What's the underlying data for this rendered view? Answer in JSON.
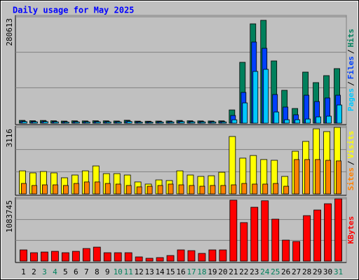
{
  "chart_data": [
    {
      "type": "bar",
      "title": "Daily usage for May 2025",
      "separator": "/",
      "ylim": [
        0,
        280613
      ],
      "yticks": [
        280613
      ],
      "series": [
        {
          "name": "Hits",
          "color": "#00805c",
          "values": [
            7400,
            6600,
            7200,
            6400,
            5600,
            6200,
            6000,
            6400,
            6200,
            5800,
            7800,
            5400,
            5200,
            5600,
            5800,
            7200,
            6400,
            6000,
            5800,
            6200,
            35000,
            160600,
            262100,
            271400,
            164300,
            86800,
            38800,
            134800,
            107100,
            125500,
            144000
          ]
        },
        {
          "name": "Files",
          "color": "#0040ff",
          "values": [
            5500,
            4800,
            5400,
            4600,
            4000,
            4400,
            4200,
            4600,
            4400,
            4200,
            5800,
            3800,
            3700,
            4000,
            4200,
            5400,
            4600,
            4400,
            4200,
            4400,
            20300,
            81200,
            214100,
            197500,
            75700,
            42500,
            22200,
            73800,
            57200,
            66500,
            73800
          ]
        },
        {
          "name": "Pages",
          "color": "#00c8ff",
          "values": [
            4200,
            3600,
            4100,
            3500,
            3000,
            3300,
            3200,
            3500,
            3300,
            3200,
            4400,
            2800,
            2700,
            3000,
            3200,
            4100,
            3500,
            3300,
            3200,
            3300,
            9000,
            53500,
            136600,
            142100,
            29500,
            9200,
            9200,
            11000,
            16600,
            18500,
            48000
          ]
        }
      ]
    },
    {
      "type": "bar",
      "separator": "/",
      "ylim": [
        0,
        3116
      ],
      "yticks": [
        3116
      ],
      "series": [
        {
          "name": "Visits",
          "color": "#ffff00",
          "values": [
            1080,
            985,
            1050,
            985,
            755,
            885,
            1080,
            1310,
            950,
            950,
            885,
            560,
            460,
            655,
            625,
            1080,
            885,
            820,
            850,
            1015,
            2690,
            1675,
            1800,
            1610,
            1575,
            820,
            2000,
            2460,
            3050,
            2920,
            3116
          ]
        },
        {
          "name": "Sites",
          "color": "#ff8000",
          "values": [
            490,
            395,
            425,
            425,
            395,
            490,
            560,
            560,
            490,
            460,
            395,
            330,
            360,
            395,
            460,
            425,
            395,
            360,
            395,
            395,
            425,
            490,
            460,
            460,
            490,
            360,
            1610,
            1610,
            1610,
            1575,
            1545
          ]
        }
      ]
    },
    {
      "type": "bar",
      "ylim": [
        0,
        1083745
      ],
      "yticks": [
        1083745
      ],
      "categories": [
        "1",
        "2",
        "3",
        "4",
        "5",
        "6",
        "7",
        "8",
        "9",
        "10",
        "11",
        "12",
        "13",
        "14",
        "15",
        "16",
        "17",
        "18",
        "19",
        "20",
        "21",
        "22",
        "23",
        "24",
        "25",
        "26",
        "27",
        "28",
        "29",
        "30",
        "31"
      ],
      "label_colors": [
        "#000000",
        "#000000",
        "#00805c",
        "#00805c",
        "#000000",
        "#000000",
        "#000000",
        "#000000",
        "#000000",
        "#00805c",
        "#00805c",
        "#000000",
        "#000000",
        "#000000",
        "#000000",
        "#000000",
        "#00805c",
        "#00805c",
        "#000000",
        "#000000",
        "#000000",
        "#000000",
        "#000000",
        "#00805c",
        "#00805c",
        "#000000",
        "#000000",
        "#000000",
        "#000000",
        "#000000",
        "#00805c"
      ],
      "series": [
        {
          "name": "KBytes",
          "color": "#ff0000",
          "values": [
            195000,
            146000,
            158000,
            170000,
            146000,
            170000,
            219000,
            243000,
            146000,
            146000,
            146000,
            73000,
            49000,
            61000,
            97000,
            195000,
            182000,
            134000,
            195000,
            195000,
            1060000,
            670000,
            937000,
            1050000,
            730000,
            365000,
            341000,
            791000,
            889000,
            998000,
            1083745
          ]
        }
      ]
    }
  ]
}
